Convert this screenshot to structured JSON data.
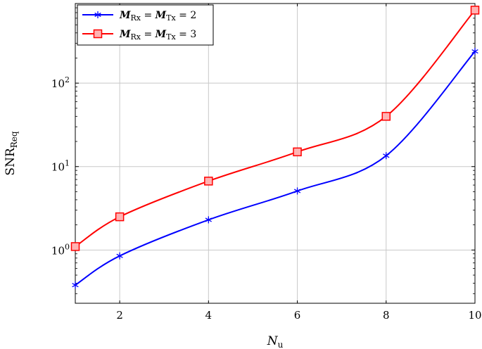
{
  "chart_data": {
    "type": "line",
    "xlabel_main": "N",
    "xlabel_sub": "u",
    "ylabel_main": "SNR",
    "ylabel_sub": "Req",
    "xlim": [
      1,
      10
    ],
    "ylim": [
      0.23,
      900
    ],
    "yscale": "log",
    "grid": true,
    "legend_position": "top-left",
    "x_ticks": [
      2,
      4,
      6,
      8,
      10
    ],
    "y_ticks": [
      {
        "value": 1,
        "base": "10",
        "exp": "0"
      },
      {
        "value": 10,
        "base": "10",
        "exp": "1"
      },
      {
        "value": 100,
        "base": "10",
        "exp": "2"
      }
    ],
    "series": [
      {
        "legend": {
          "m1": "M",
          "s1": "Rx",
          "eq": " = ",
          "m2": "M",
          "s2": "Tx",
          "val": " = 2"
        },
        "color": "#0000ff",
        "marker": "asterisk",
        "x": [
          1,
          2,
          4,
          6,
          8,
          10
        ],
        "y": [
          0.38,
          0.85,
          2.3,
          5.1,
          13.5,
          240
        ]
      },
      {
        "legend": {
          "m1": "M",
          "s1": "Rx",
          "eq": " = ",
          "m2": "M",
          "s2": "Tx",
          "val": " = 3"
        },
        "color": "#ff0000",
        "marker": "square",
        "x": [
          1,
          2,
          4,
          6,
          8,
          10
        ],
        "y": [
          1.1,
          2.5,
          6.7,
          15,
          40,
          750
        ]
      }
    ]
  }
}
